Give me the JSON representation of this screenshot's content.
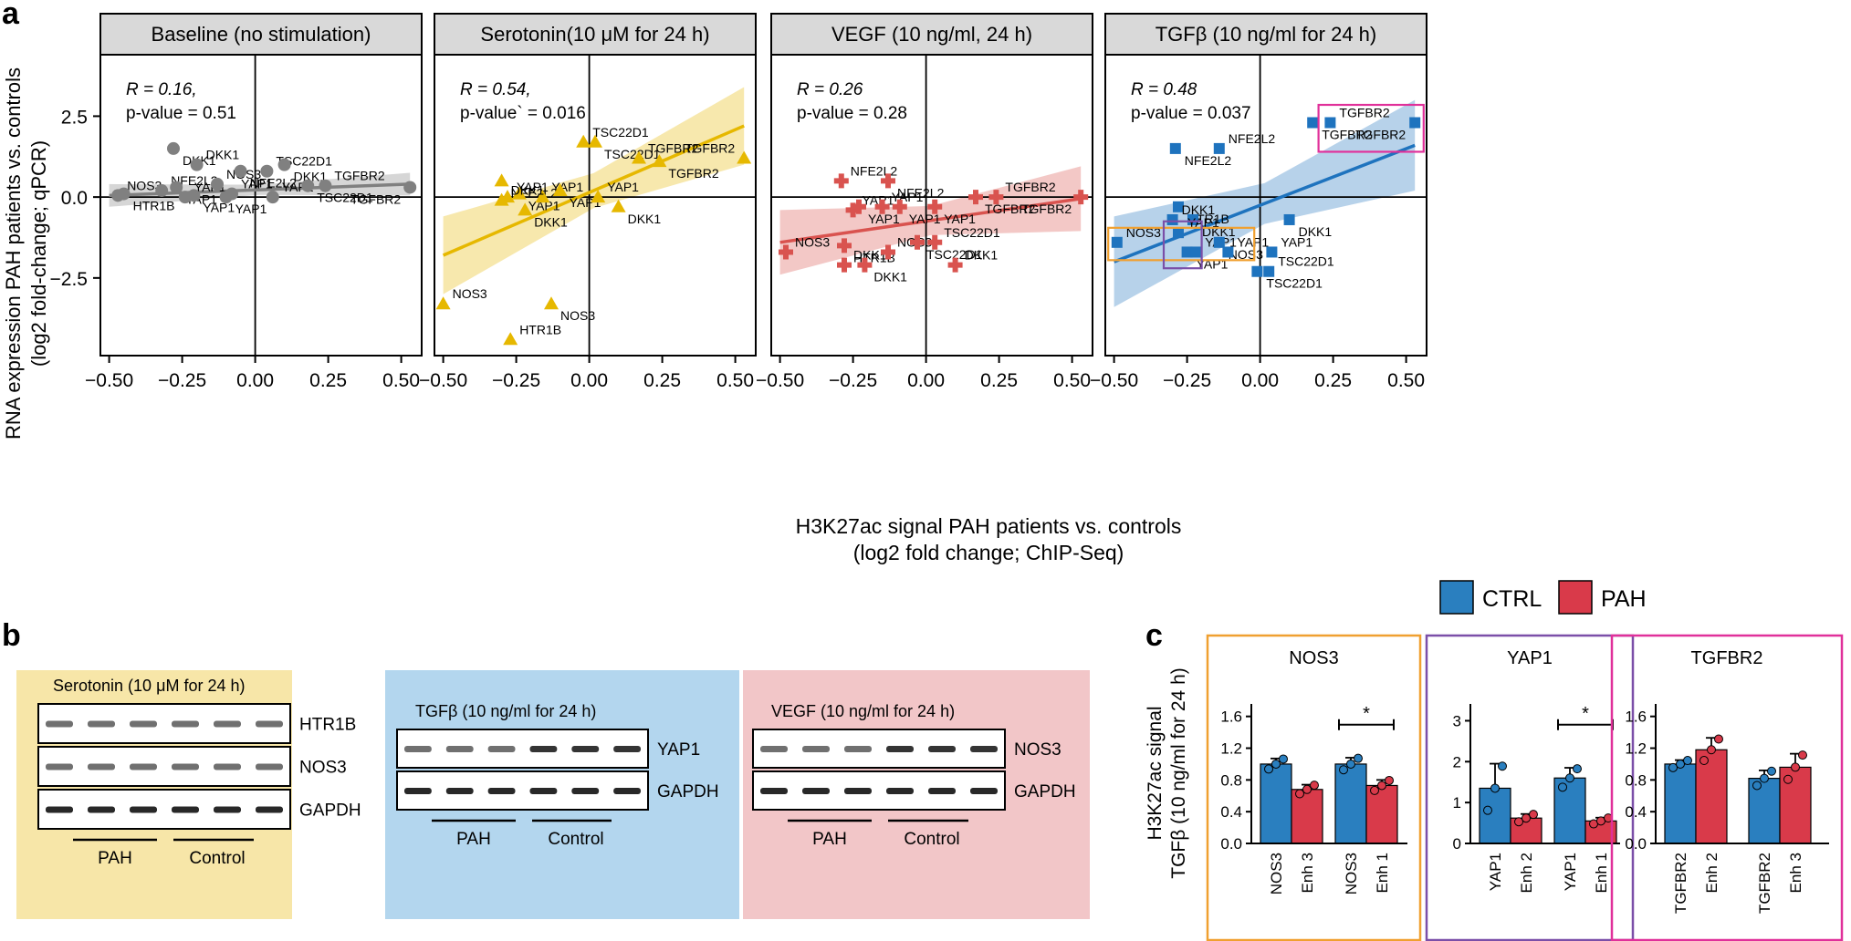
{
  "panel_labels": {
    "a": "a",
    "b": "b",
    "c": "c"
  },
  "colors": {
    "baseline": "#808080",
    "serotonin": "#E6B800",
    "vegf": "#D9534F",
    "tgfb": "#1E73BE",
    "ctrl": "#2A7FBF",
    "pah": "#D93A4A",
    "wb_serotonin_bg": "#F7E6A8",
    "wb_tgfb_bg": "#B3D6EE",
    "wb_vegf_bg": "#F2C6C8",
    "box_nos3": "#F0A030",
    "box_yap1": "#7B4FA8",
    "box_tgfbr2": "#E0309A"
  },
  "scatter": {
    "xlabel": "H3K27ac signal PAH patients vs. controls",
    "xlabel2": "(log2 fold change; ChIP-Seq)",
    "ylabel": "RNA expression PAH patients vs. controls",
    "ylabel2": "(log2 fold-change; qPCR)",
    "xticks": [
      "−0.50",
      "−0.25",
      "0.00",
      "0.25",
      "0.50"
    ],
    "yticks": [
      "2.5",
      "0.0",
      "−2.5"
    ]
  },
  "chart_data": [
    {
      "type": "scatter",
      "title": "Baseline (no stimulation)",
      "stat_r": "R = 0.16,",
      "stat_p": "p-value = 0.51",
      "xlim": [
        -0.53,
        0.57
      ],
      "ylim": [
        -4.9,
        4.4
      ],
      "fit": [
        [
          -0.5,
          0.05
        ],
        [
          0.53,
          0.4
        ]
      ],
      "band": 0.35,
      "points": [
        {
          "x": -0.47,
          "y": 0.05,
          "label": "NOS3"
        },
        {
          "x": -0.45,
          "y": 0.1,
          "label": "HTR1B"
        },
        {
          "x": -0.32,
          "y": 0.2,
          "label": "NFE2L2"
        },
        {
          "x": -0.28,
          "y": 1.5,
          "label": "DKK1"
        },
        {
          "x": -0.2,
          "y": 1.0,
          "label": "DKK1"
        },
        {
          "x": -0.27,
          "y": 0.3,
          "label": "YAP1"
        },
        {
          "x": -0.24,
          "y": 0.0,
          "label": "YAP1"
        },
        {
          "x": -0.21,
          "y": 0.05,
          "label": "YAP1"
        },
        {
          "x": -0.13,
          "y": 0.4,
          "label": "NOS3"
        },
        {
          "x": -0.1,
          "y": 0.0,
          "label": "YAP1"
        },
        {
          "x": -0.08,
          "y": 0.1,
          "label": "YAP1"
        },
        {
          "x": -0.05,
          "y": 0.8,
          "label": "NFE2L2"
        },
        {
          "x": 0.04,
          "y": 0.8,
          "label": "TSC22D1"
        },
        {
          "x": 0.1,
          "y": 1.0,
          "label": "DKK1"
        },
        {
          "x": 0.06,
          "y": 0.0,
          "label": "YAP1"
        },
        {
          "x": 0.18,
          "y": 0.35,
          "label": "TSC22D1"
        },
        {
          "x": 0.24,
          "y": 0.35,
          "label": "TGFBR2"
        },
        {
          "x": 0.53,
          "y": 0.3,
          "label": "TGFBR2"
        }
      ]
    },
    {
      "type": "scatter",
      "title": "Serotonin(10 μM for 24 h)",
      "stat_r": "R = 0.54,",
      "stat_p": "p-value` = 0.016",
      "xlim": [
        -0.53,
        0.57
      ],
      "ylim": [
        -4.9,
        4.4
      ],
      "fit": [
        [
          -0.5,
          -1.8
        ],
        [
          0.53,
          2.2
        ]
      ],
      "band": 1.2,
      "points": [
        {
          "x": -0.5,
          "y": -3.3,
          "label": "NOS3"
        },
        {
          "x": -0.13,
          "y": -3.3,
          "label": "NOS3"
        },
        {
          "x": -0.27,
          "y": -4.4,
          "label": "HTR1B"
        },
        {
          "x": -0.3,
          "y": 0.5,
          "label": "NFE2L2"
        },
        {
          "x": -0.28,
          "y": 0.0,
          "label": "YAP1"
        },
        {
          "x": -0.24,
          "y": 0.1,
          "label": "YAP1"
        },
        {
          "x": -0.16,
          "y": 0.0,
          "label": "YAP1"
        },
        {
          "x": -0.1,
          "y": 0.2,
          "label": "YAP1"
        },
        {
          "x": -0.3,
          "y": -0.1,
          "label": "DKK1"
        },
        {
          "x": -0.22,
          "y": -0.4,
          "label": "DKK1"
        },
        {
          "x": -0.02,
          "y": 1.7,
          "label": "TSC22D1"
        },
        {
          "x": 0.02,
          "y": 1.7,
          "label": "TSC22D1"
        },
        {
          "x": 0.03,
          "y": 0.0,
          "label": "YAP1"
        },
        {
          "x": 0.1,
          "y": -0.3,
          "label": "DKK1"
        },
        {
          "x": 0.17,
          "y": 1.2,
          "label": "TGFBR2"
        },
        {
          "x": 0.24,
          "y": 1.1,
          "label": "TGFBR2"
        },
        {
          "x": 0.53,
          "y": 1.2,
          "label": "TGFBR2"
        }
      ]
    },
    {
      "type": "scatter",
      "title": "VEGF (10 ng/ml, 24 h)",
      "stat_r": "R = 0.26",
      "stat_p": "p-value = 0.28",
      "xlim": [
        -0.53,
        0.57
      ],
      "ylim": [
        -4.9,
        4.4
      ],
      "fit": [
        [
          -0.5,
          -1.4
        ],
        [
          0.53,
          -0.05
        ]
      ],
      "band": 1.0,
      "points": [
        {
          "x": -0.48,
          "y": -1.7,
          "label": "NOS3"
        },
        {
          "x": -0.28,
          "y": -1.5,
          "label": "HTR1B"
        },
        {
          "x": -0.28,
          "y": -2.1,
          "label": "DKK1"
        },
        {
          "x": -0.21,
          "y": -2.1,
          "label": "DKK1"
        },
        {
          "x": -0.29,
          "y": 0.5,
          "label": "NFE2L2"
        },
        {
          "x": -0.13,
          "y": 0.5,
          "label": "NFE2L2"
        },
        {
          "x": -0.25,
          "y": -0.4,
          "label": "YAP1"
        },
        {
          "x": -0.23,
          "y": -0.3,
          "label": "YAP1"
        },
        {
          "x": -0.15,
          "y": -0.3,
          "label": "YAP1"
        },
        {
          "x": -0.09,
          "y": -0.3,
          "label": "YAP1"
        },
        {
          "x": -0.13,
          "y": -1.7,
          "label": "NOS3"
        },
        {
          "x": -0.03,
          "y": -1.4,
          "label": "TSC22D1"
        },
        {
          "x": 0.03,
          "y": -1.4,
          "label": "TSC22D1"
        },
        {
          "x": 0.03,
          "y": -0.3,
          "label": "YAP1"
        },
        {
          "x": 0.1,
          "y": -2.1,
          "label": "DKK1"
        },
        {
          "x": 0.17,
          "y": 0.0,
          "label": "TGFBR2"
        },
        {
          "x": 0.24,
          "y": 0.0,
          "label": "TGFBR2"
        },
        {
          "x": 0.53,
          "y": 0.0,
          "label": "TGFBR2"
        }
      ]
    },
    {
      "type": "scatter",
      "title": "TGFβ (10 ng/ml for 24 h)",
      "stat_r": "R = 0.48",
      "stat_p": "p-value = 0.037",
      "xlim": [
        -0.53,
        0.57
      ],
      "ylim": [
        -4.9,
        4.4
      ],
      "fit": [
        [
          -0.5,
          -2.0
        ],
        [
          0.53,
          1.6
        ]
      ],
      "band": 1.4,
      "points": [
        {
          "x": -0.49,
          "y": -1.4,
          "label": "NOS3"
        },
        {
          "x": -0.29,
          "y": 1.5,
          "label": "NFE2L2"
        },
        {
          "x": -0.14,
          "y": 1.5,
          "label": "NFE2L2"
        },
        {
          "x": -0.28,
          "y": -0.3,
          "label": "HTR1B"
        },
        {
          "x": -0.3,
          "y": -0.7,
          "label": "DKK1"
        },
        {
          "x": -0.23,
          "y": -0.7,
          "label": "DKK1"
        },
        {
          "x": -0.28,
          "y": -1.1,
          "label": "YAP1"
        },
        {
          "x": -0.25,
          "y": -1.7,
          "label": "YAP1"
        },
        {
          "x": -0.22,
          "y": -1.7,
          "label": "YAP1"
        },
        {
          "x": -0.14,
          "y": -1.4,
          "label": "NOS3"
        },
        {
          "x": -0.11,
          "y": -1.7,
          "label": "YAP1"
        },
        {
          "x": 0.1,
          "y": -0.7,
          "label": "DKK1"
        },
        {
          "x": 0.04,
          "y": -1.7,
          "label": "YAP1"
        },
        {
          "x": -0.01,
          "y": -2.3,
          "label": "TSC22D1"
        },
        {
          "x": 0.03,
          "y": -2.3,
          "label": "TSC22D1"
        },
        {
          "x": 0.18,
          "y": 2.3,
          "label": "TGFBR2"
        },
        {
          "x": 0.24,
          "y": 2.3,
          "label": "TGFBR2"
        },
        {
          "x": 0.53,
          "y": 2.3,
          "label": "TGFBR2"
        }
      ]
    },
    {
      "type": "bar",
      "title": "NOS3",
      "yticks": [
        "1.6",
        "1.2",
        "0.8",
        "0.4",
        "0.0"
      ],
      "ylim": [
        0,
        1.7
      ],
      "groups": [
        {
          "line1": "NOS3",
          "line2": "Enh 3",
          "ctrl": 1.0,
          "pah": 0.68,
          "ctrl_err": 0.07,
          "pah_err": 0.06
        },
        {
          "line1": "NOS3",
          "line2": "Enh 1",
          "ctrl": 1.0,
          "pah": 0.73,
          "ctrl_err": 0.08,
          "pah_err": 0.07,
          "sig": "*"
        }
      ]
    },
    {
      "type": "bar",
      "title": "YAP1",
      "yticks": [
        "3",
        "2",
        "1",
        "0"
      ],
      "ylim": [
        0,
        3.3
      ],
      "groups": [
        {
          "line1": "YAP1",
          "line2": "Enh 2",
          "ctrl": 1.35,
          "pah": 0.62,
          "ctrl_err": 0.6,
          "pah_err": 0.1
        },
        {
          "line1": "YAP1",
          "line2": "Enh 1",
          "ctrl": 1.6,
          "pah": 0.55,
          "ctrl_err": 0.25,
          "pah_err": 0.08,
          "sig": "*"
        }
      ]
    },
    {
      "type": "bar",
      "title": "TGFBR2",
      "yticks": [
        "1.6",
        "1.2",
        "0.8",
        "0.4",
        "0.0"
      ],
      "ylim": [
        0,
        1.7
      ],
      "groups": [
        {
          "line1": "TGFBR2",
          "line2": "Enh 2",
          "ctrl": 1.0,
          "pah": 1.18,
          "ctrl_err": 0.05,
          "pah_err": 0.15
        },
        {
          "line1": "TGFBR2",
          "line2": "Enh 3",
          "ctrl": 0.82,
          "pah": 0.96,
          "ctrl_err": 0.1,
          "pah_err": 0.17
        }
      ]
    }
  ],
  "bar_ylabel1": "H3K27ac signal",
  "bar_ylabel2": "TGFβ (10 ng/ml for 24 h)",
  "legend": {
    "ctrl": "CTRL",
    "pah": "PAH"
  },
  "blots": [
    {
      "title": "Serotonin (10 μM for 24 h)",
      "bands": [
        "HTR1B",
        "NOS3",
        "GAPDH"
      ],
      "group1": "PAH",
      "group2": "Control"
    },
    {
      "title": "TGFβ (10 ng/ml for 24 h)",
      "bands": [
        "YAP1",
        "GAPDH"
      ],
      "group1": "PAH",
      "group2": "Control"
    },
    {
      "title": "VEGF (10 ng/ml for 24 h)",
      "bands": [
        "NOS3",
        "GAPDH"
      ],
      "group1": "PAH",
      "group2": "Control"
    }
  ]
}
